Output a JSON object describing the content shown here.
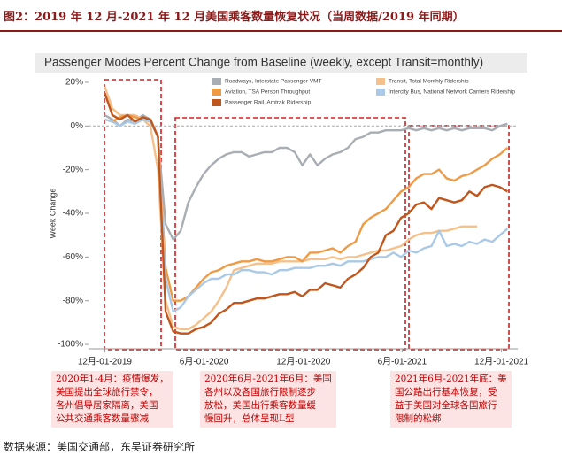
{
  "figure": {
    "title": "图2：2019 年 12 月-2021 年 12 月美国乘客数量恢复状况（当周数据/2019 年同期）",
    "source": "数据来源：美国交通部，东吴证券研究所"
  },
  "chart_data": {
    "type": "line",
    "title": "Passenger Modes Percent Change from Baseline (weekly, except Transit=monthly)",
    "y_label": "Week Change",
    "x": [
      "2019-12-01",
      "2019-12-15",
      "2019-12-29",
      "2020-01-12",
      "2020-01-26",
      "2020-02-09",
      "2020-02-23",
      "2020-03-08",
      "2020-03-22",
      "2020-04-05",
      "2020-04-19",
      "2020-05-03",
      "2020-05-17",
      "2020-05-31",
      "2020-06-14",
      "2020-06-28",
      "2020-07-12",
      "2020-07-26",
      "2020-08-09",
      "2020-08-23",
      "2020-09-06",
      "2020-09-20",
      "2020-10-04",
      "2020-10-18",
      "2020-11-01",
      "2020-11-15",
      "2020-11-29",
      "2020-12-13",
      "2020-12-27",
      "2021-01-10",
      "2021-01-24",
      "2021-02-07",
      "2021-02-21",
      "2021-03-07",
      "2021-03-21",
      "2021-04-04",
      "2021-04-18",
      "2021-05-02",
      "2021-05-16",
      "2021-05-30",
      "2021-06-13",
      "2021-06-27",
      "2021-07-11",
      "2021-07-25",
      "2021-08-08",
      "2021-08-22",
      "2021-09-05",
      "2021-09-19",
      "2021-10-03",
      "2021-10-17",
      "2021-10-31",
      "2021-11-14",
      "2021-11-28",
      "2021-12-12"
    ],
    "xlim": [
      "2019-11-01",
      "2021-12-31"
    ],
    "xticks": [
      {
        "value": "2019-12-01",
        "label": "12月-01-2019"
      },
      {
        "value": "2020-06-01",
        "label": "6月-01-2020"
      },
      {
        "value": "2020-12-01",
        "label": "12月-01-2020"
      },
      {
        "value": "2021-06-01",
        "label": "6月-01-2021"
      },
      {
        "value": "2021-12-01",
        "label": "12月-01-2021"
      }
    ],
    "ylim": [
      -102,
      22
    ],
    "yticks": [
      {
        "value": 20,
        "label": "20%"
      },
      {
        "value": 0,
        "label": "0%"
      },
      {
        "value": -20,
        "label": "-20%"
      },
      {
        "value": -40,
        "label": "-40%"
      },
      {
        "value": -60,
        "label": "-60%"
      },
      {
        "value": -80,
        "label": "-80%"
      },
      {
        "value": -100,
        "label": "-100%"
      }
    ],
    "series": [
      {
        "name": "Roadways, Interstate Passenger VMT",
        "color": "#a9adb4",
        "values": [
          5,
          3,
          0,
          3,
          2,
          5,
          3,
          -5,
          -45,
          -52,
          -48,
          -35,
          -28,
          -22,
          -18,
          -15,
          -13,
          -12,
          -12,
          -14,
          -13,
          -12,
          -12,
          -10,
          -10,
          -12,
          -18,
          -13,
          -18,
          -15,
          -13,
          -12,
          -10,
          -6,
          -5,
          -3,
          -3,
          -2,
          -2,
          -2,
          -1,
          -2,
          -1,
          -2,
          -1,
          -2,
          -1,
          -2,
          -1,
          -1,
          -1,
          -2,
          0,
          1
        ]
      },
      {
        "name": "Transit, Total Monthly Ridership",
        "color": "#f5c08a",
        "values": [
          18,
          8,
          5,
          5,
          5,
          3,
          0,
          -20,
          -80,
          -92,
          -93,
          -93,
          -91,
          -88,
          -85,
          -80,
          -74,
          -66,
          -65,
          -64,
          -63,
          -63,
          -63,
          -62,
          -62,
          -62,
          -62,
          -61,
          -61,
          -61,
          -60,
          -61,
          -60,
          -60,
          -59,
          -58,
          -57,
          -57,
          -56,
          -55,
          -52,
          -50,
          -49,
          -49,
          -48,
          -48,
          -47,
          -46,
          -46,
          -46,
          null,
          null,
          null,
          null
        ]
      },
      {
        "name": "Aviation, TSA Person Throughput",
        "color": "#ef9a44",
        "values": [
          3,
          2,
          4,
          5,
          4,
          3,
          2,
          -5,
          -65,
          -80,
          -80,
          -78,
          -74,
          -70,
          -67,
          -66,
          -64,
          -63,
          -62,
          -62,
          -61,
          -62,
          -62,
          -61,
          -60,
          -60,
          -62,
          -58,
          -58,
          -57,
          -56,
          -58,
          -55,
          -53,
          -45,
          -42,
          -40,
          -38,
          -34,
          -30,
          -28,
          -24,
          -22,
          -22,
          -20,
          -24,
          -25,
          -23,
          -22,
          -20,
          -18,
          -15,
          -13,
          -10
        ]
      },
      {
        "name": "Intercity Bus, National Network Carriers Ridership",
        "color": "#a9c9e6",
        "values": [
          3,
          2,
          0,
          2,
          1,
          3,
          2,
          -5,
          -70,
          -85,
          -83,
          -78,
          -75,
          -72,
          -70,
          -70,
          -68,
          -68,
          -66,
          -66,
          -67,
          -67,
          -68,
          -66,
          -66,
          -65,
          -65,
          -65,
          -64,
          -64,
          -63,
          -64,
          -62,
          -62,
          -62,
          -61,
          -60,
          -60,
          -58,
          -60,
          -57,
          -58,
          -56,
          -55,
          -48,
          -55,
          -54,
          -55,
          -53,
          -54,
          -52,
          -53,
          -50,
          -47
        ]
      },
      {
        "name": "Passenger Rail, Amtrak Ridership",
        "color": "#c0561c",
        "values": [
          15,
          5,
          3,
          5,
          2,
          4,
          3,
          -5,
          -85,
          -94,
          -95,
          -95,
          -93,
          -92,
          -90,
          -86,
          -84,
          -81,
          -81,
          -80,
          -79,
          -79,
          -78,
          -77,
          -77,
          -76,
          -78,
          -75,
          -75,
          -72,
          -73,
          -74,
          -70,
          -68,
          -65,
          -60,
          -58,
          -50,
          -48,
          -42,
          -40,
          -36,
          -35,
          -38,
          -33,
          -34,
          -35,
          -34,
          -30,
          -32,
          -28,
          -27,
          -28,
          -30
        ]
      }
    ],
    "annotations": [
      [
        "2020年1-4月：疫情爆发，",
        "美国提出全球旅行禁令，",
        "各州倡导居家隔离，美国",
        "公共交通乘客数量骤减"
      ],
      [
        "2020年6月-2021年6月：美国",
        "各州以及各国旅行限制逐步",
        "放松，美国出行乘客数量缓",
        "慢回升，总体呈现L型"
      ],
      [
        "2021年6月-2021年底：美",
        "国公路出行基本恢复，受",
        "益于美国对全球各国旅行",
        "限制的松绑"
      ]
    ]
  }
}
